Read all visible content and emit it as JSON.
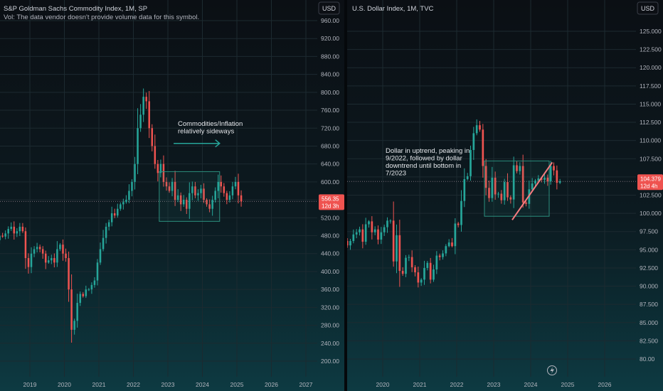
{
  "panels": [
    {
      "id": "left",
      "header": {
        "title": "S&P Goldman Sachs Commodity Index, 1M, SP",
        "subtitle": "Vol: The data vendor doesn't provide volume data for this symbol."
      },
      "currency_button": "USD",
      "price_badge": {
        "value": "556.35",
        "countdown": "12d 3h"
      },
      "annotation": [
        "Commodities/Inflation",
        "relatively sideways"
      ]
    },
    {
      "id": "right",
      "header": {
        "title": "U.S. Dollar Index, 1M, TVC"
      },
      "currency_button": "USD",
      "price_badge": {
        "value": "104.379",
        "countdown": "12d 4h"
      },
      "annotation": [
        "Dollar in uptrend, peaking in",
        "9/2022, followed by dollar",
        "downtrend until bottom in",
        "7/2023"
      ],
      "icon": "lightning-icon"
    }
  ],
  "colors": {
    "up": "#26a69a",
    "down": "#ef5350",
    "annotation": "#26a69a",
    "trendline": "#f77c80"
  },
  "chart_data": [
    {
      "type": "candlestick",
      "title": "S&P Goldman Sachs Commodity Index, 1M, SP",
      "x_ticks": [
        "2019",
        "2020",
        "2021",
        "2022",
        "2023",
        "2024",
        "2025",
        "2026",
        "2027"
      ],
      "y_ticks": [
        "200.00",
        "240.00",
        "280.00",
        "320.00",
        "360.00",
        "400.00",
        "440.00",
        "480.00",
        "520.00",
        "560.00",
        "600.00",
        "640.00",
        "680.00",
        "720.00",
        "760.00",
        "800.00",
        "840.00",
        "880.00",
        "920.00",
        "960.00"
      ],
      "ylim": [
        180,
        975
      ],
      "last_price": 556.35,
      "close_series": {
        "start": "2018-01",
        "values": [
          470,
          480,
          478,
          485,
          495,
          500,
          485,
          490,
          500,
          490,
          430,
          410,
          440,
          450,
          455,
          450,
          440,
          420,
          425,
          430,
          420,
          450,
          460,
          440,
          430,
          360,
          270,
          290,
          330,
          350,
          345,
          360,
          360,
          370,
          380,
          420,
          450,
          475,
          500,
          510,
          530,
          525,
          540,
          550,
          555,
          560,
          580,
          600,
          640,
          720,
          750,
          790,
          780,
          720,
          680,
          640,
          620,
          640,
          600,
          590,
          580,
          600,
          560,
          570,
          550,
          560,
          540,
          575,
          590,
          570,
          575,
          585,
          560,
          550,
          540,
          560,
          580,
          600,
          590,
          575,
          560,
          570,
          590,
          600,
          570,
          556.35
        ]
      },
      "annotations": [
        {
          "text": "Commodities/Inflation relatively sideways",
          "arrow_from": "2023-03",
          "arrow_to": "2024-07",
          "at": 686
        },
        {
          "shape": "rectangle",
          "from": "2022-10",
          "to": "2024-07",
          "top": 623,
          "bottom": 512
        }
      ]
    },
    {
      "type": "candlestick",
      "title": "U.S. Dollar Index, 1M, TVC",
      "x_ticks": [
        "2020",
        "2021",
        "2022",
        "2023",
        "2024",
        "2025",
        "2026"
      ],
      "y_ticks": [
        "80.00",
        "82.500",
        "85.000",
        "87.500",
        "90.000",
        "92.500",
        "95.000",
        "97.500",
        "100.000",
        "102.500",
        "105.000",
        "107.500",
        "110.000",
        "112.500",
        "115.000",
        "117.500",
        "120.000",
        "122.500",
        "125.000"
      ],
      "ylim": [
        79,
        127
      ],
      "last_price": 104.379,
      "close_series": {
        "start": "2018-10",
        "values": [
          96.5,
          97.2,
          96.2,
          95.6,
          96.2,
          97.1,
          97.4,
          97.8,
          96.1,
          98.5,
          98.9,
          97.4,
          97.8,
          96.4,
          97.4,
          98.1,
          99.0,
          99.0,
          93.4,
          97.0,
          92.1,
          91.7,
          93.9,
          94.0,
          92.6,
          91.9,
          90.5,
          90.9,
          92.5,
          93.2,
          90.9,
          92.3,
          94.2,
          94.0,
          94.5,
          95.5,
          96.0,
          95.5,
          98.6,
          98.4,
          101.7,
          104.7,
          105.1,
          108.7,
          111.0,
          112.1,
          111.5,
          106.5,
          103.5,
          102.1,
          104.9,
          102.6,
          102.7,
          101.8,
          104.3,
          102.2,
          101.9,
          106.6,
          105.8,
          106.5,
          101.5,
          101.3,
          103.3,
          104.1,
          104.5,
          104.8,
          104.6,
          104.9,
          104.4,
          106.5,
          105.9,
          104.2,
          104.4
        ]
      },
      "annotations": [
        {
          "text": "Dollar in uptrend, peaking in 9/2022, followed by dollar downtrend until bottom in 7/2023"
        },
        {
          "shape": "rectangle",
          "from": "2022-10",
          "to": "2024-07",
          "top": 107.2,
          "bottom": 99.6
        },
        {
          "shape": "trendline",
          "from": [
            "2023-07",
            99.1
          ],
          "to": [
            "2024-08",
            107.0
          ]
        }
      ]
    }
  ]
}
